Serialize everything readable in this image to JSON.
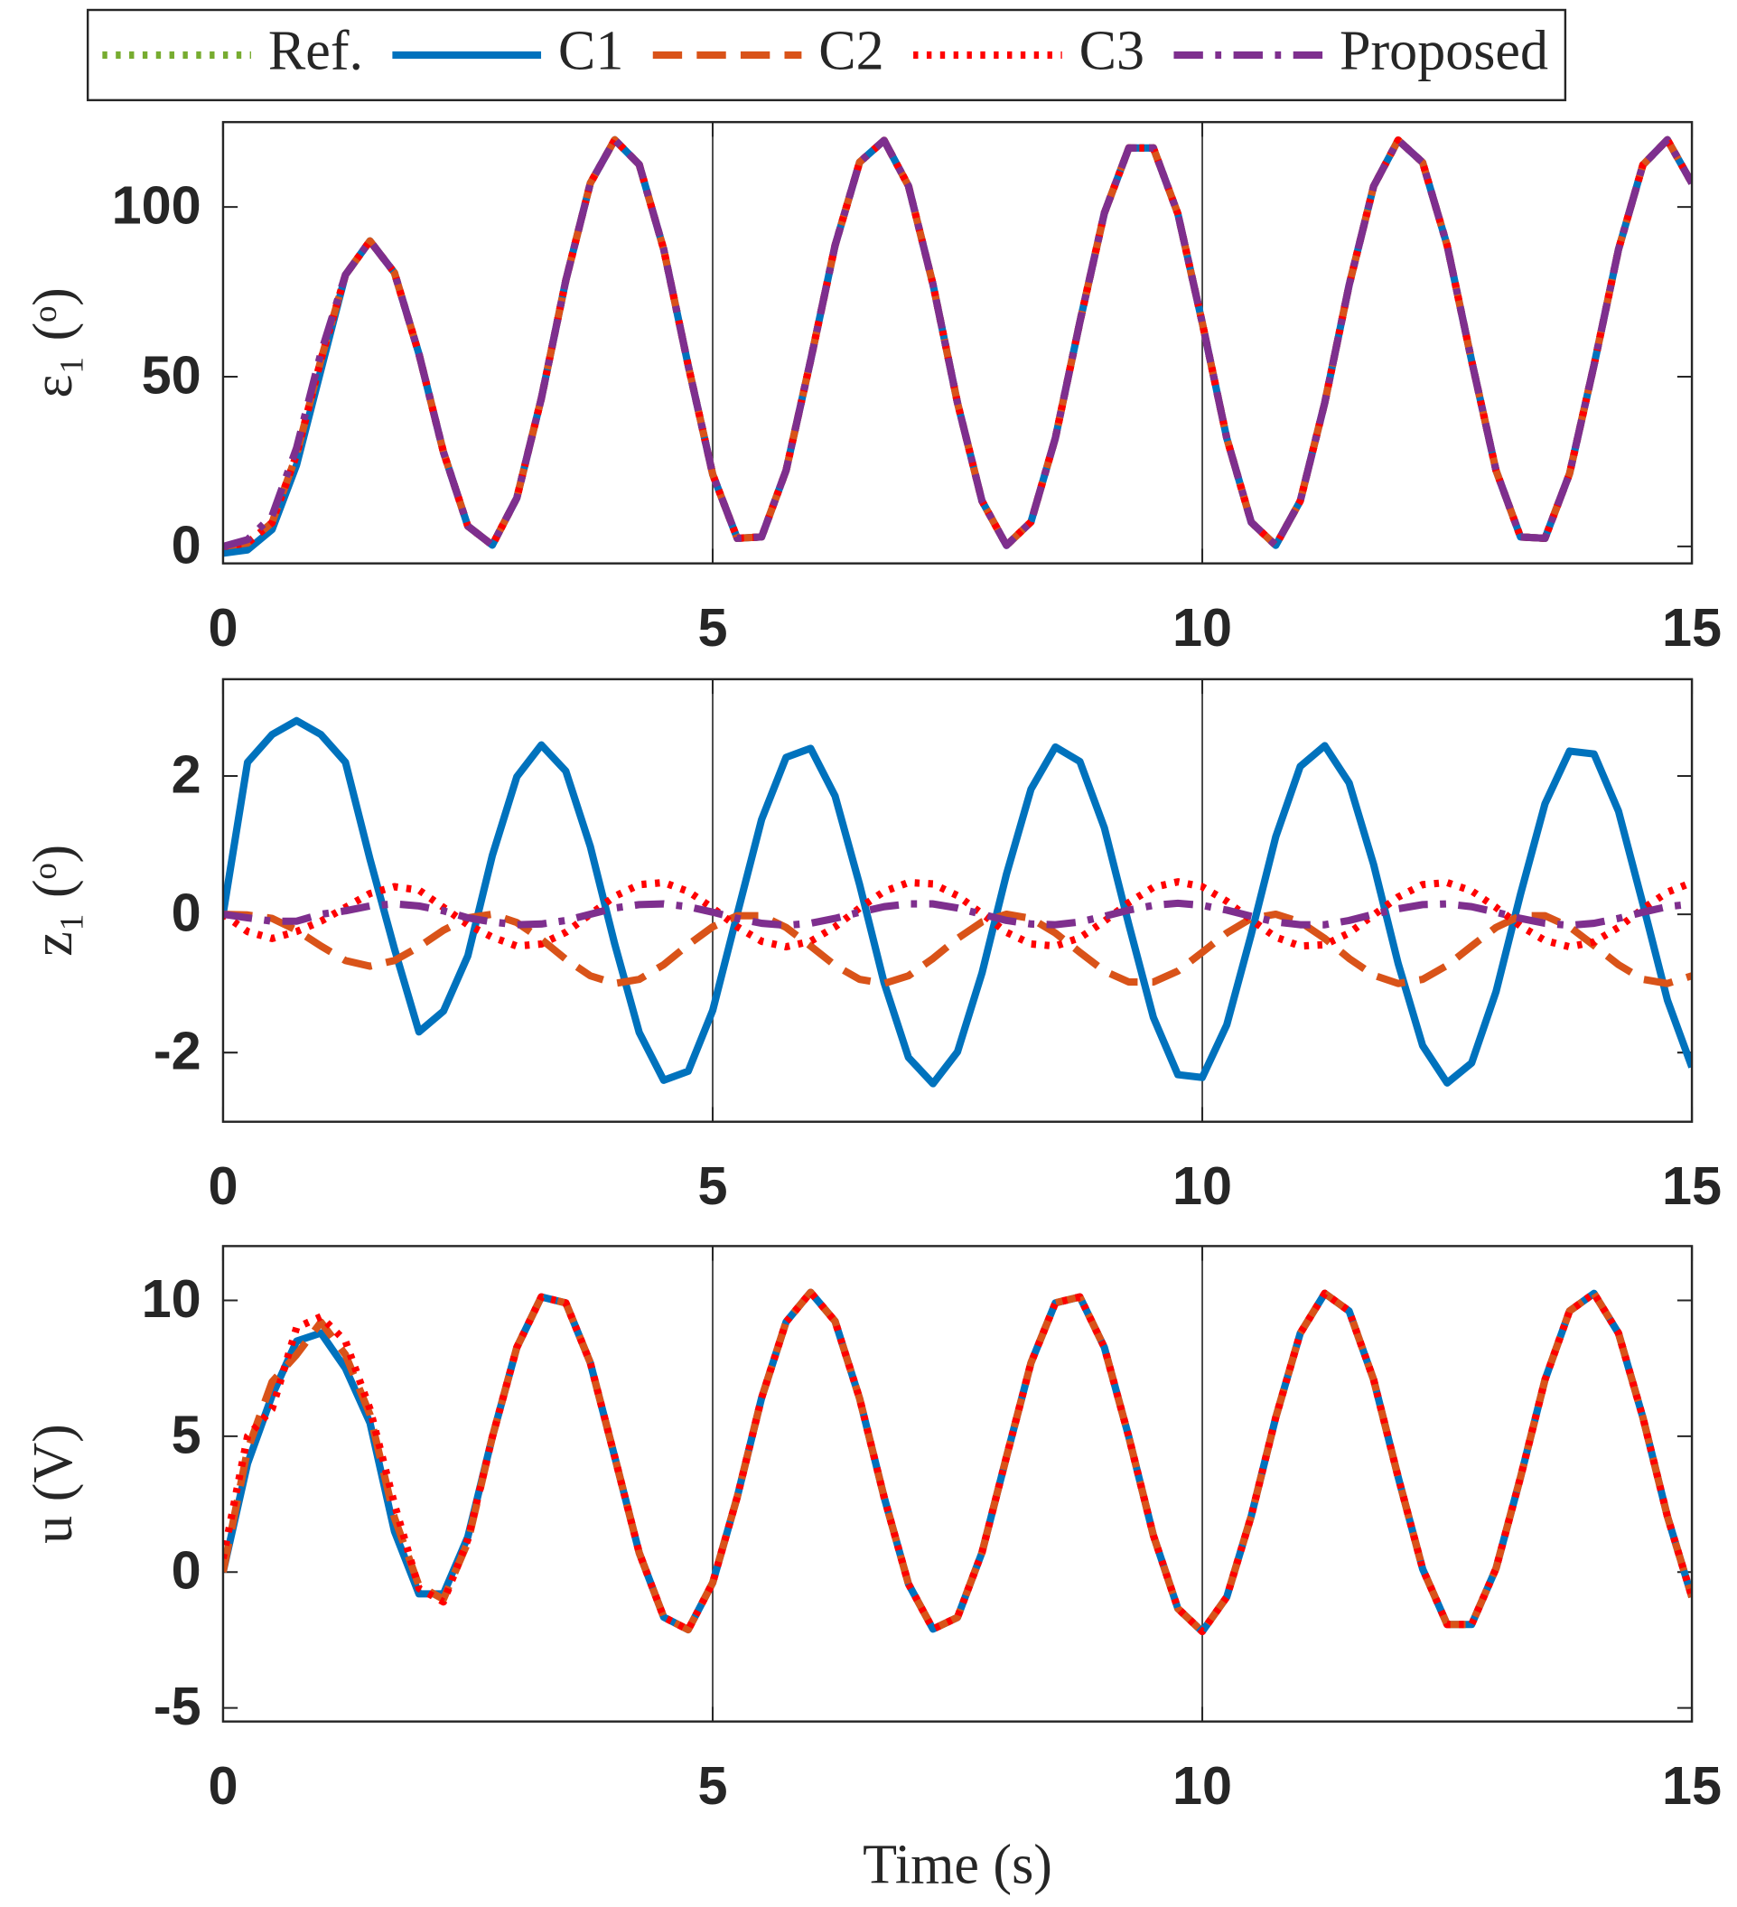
{
  "chart_data": [
    {
      "type": "line",
      "ylabel": "ε₁ (ᵒ)",
      "legend": "top",
      "xgrid": true,
      "xlim": [
        0,
        15
      ],
      "xticks": [
        0,
        5,
        10,
        15
      ],
      "ylim": [
        -5,
        125
      ],
      "yticks": [
        0,
        50,
        100
      ],
      "x": [
        0,
        0.25,
        0.5,
        0.75,
        1,
        1.25,
        1.5,
        1.75,
        2,
        2.25,
        2.5,
        2.75,
        3,
        3.25,
        3.5,
        3.75,
        4,
        4.25,
        4.5,
        4.75,
        5,
        5.25,
        5.5,
        5.75,
        6,
        6.25,
        6.5,
        6.75,
        7,
        7.25,
        7.5,
        7.75,
        8,
        8.25,
        8.5,
        8.75,
        9,
        9.25,
        9.5,
        9.75,
        10,
        10.25,
        10.5,
        10.75,
        11,
        11.25,
        11.5,
        11.75,
        12,
        12.25,
        12.5,
        12.75,
        13,
        13.25,
        13.5,
        13.75,
        14,
        14.25,
        14.5,
        14.75,
        15
      ],
      "series": [
        {
          "name": "Ref.",
          "color": "#77ac30",
          "dash": "dotted",
          "values": [
            0,
            1,
            7,
            27,
            55,
            80,
            90,
            80.6,
            56.7,
            27.8,
            6,
            0.4,
            14.3,
            43.6,
            78.4,
            107,
            119.8,
            112.5,
            87.5,
            53.3,
            21.2,
            2.4,
            2.8,
            22.4,
            54.8,
            88.7,
            113.2,
            119.6,
            106.2,
            77.2,
            42.3,
            13.4,
            0.3,
            7.2,
            31.9,
            66.1,
            98.2,
            117.4,
            117.4,
            98,
            65.9,
            31.9,
            7.1,
            0.3,
            13.4,
            42.3,
            77,
            106.1,
            119.7,
            113.1,
            88.7,
            54.7,
            22.4,
            2.8,
            2.4,
            21.4,
            53.4,
            87.5,
            112.4,
            119.8,
            107
          ]
        },
        {
          "name": "C1",
          "color": "#0072bd",
          "dash": "solid",
          "values": [
            -2,
            -1,
            5,
            24,
            52,
            80,
            90,
            80.6,
            56.7,
            27.8,
            6,
            0.4,
            14.3,
            43.6,
            78.4,
            107,
            119.8,
            112.5,
            87.5,
            53.3,
            21.2,
            2.4,
            2.8,
            22.4,
            54.8,
            88.7,
            113.2,
            119.6,
            106.2,
            77.2,
            42.3,
            13.4,
            0.3,
            7.2,
            31.9,
            66.1,
            98.2,
            117.4,
            117.4,
            98,
            65.9,
            31.9,
            7.1,
            0.3,
            13.4,
            42.3,
            77,
            106.1,
            119.7,
            113.1,
            88.7,
            54.7,
            22.4,
            2.8,
            2.4,
            21.4,
            53.4,
            87.5,
            112.4,
            119.8,
            107
          ]
        },
        {
          "name": "C2",
          "color": "#d95319",
          "dash": "dashed",
          "values": [
            0,
            1,
            7,
            27,
            55,
            80,
            90,
            80.6,
            56.7,
            27.8,
            6,
            0.4,
            14.3,
            43.6,
            78.4,
            107,
            119.8,
            112.5,
            87.5,
            53.3,
            21.2,
            2.4,
            2.8,
            22.4,
            54.8,
            88.7,
            113.2,
            119.6,
            106.2,
            77.2,
            42.3,
            13.4,
            0.3,
            7.2,
            31.9,
            66.1,
            98.2,
            117.4,
            117.4,
            98,
            65.9,
            31.9,
            7.1,
            0.3,
            13.4,
            42.3,
            77,
            106.1,
            119.7,
            113.1,
            88.7,
            54.7,
            22.4,
            2.8,
            2.4,
            21.4,
            53.4,
            87.5,
            112.4,
            119.8,
            107
          ]
        },
        {
          "name": "C3",
          "color": "#ff0000",
          "dash": "dotted",
          "values": [
            0,
            1,
            7,
            27,
            55,
            80,
            90,
            80.6,
            56.7,
            27.8,
            6,
            0.4,
            14.3,
            43.6,
            78.4,
            107,
            119.8,
            112.5,
            87.5,
            53.3,
            21.2,
            2.4,
            2.8,
            22.4,
            54.8,
            88.7,
            113.2,
            119.6,
            106.2,
            77.2,
            42.3,
            13.4,
            0.3,
            7.2,
            31.9,
            66.1,
            98.2,
            117.4,
            117.4,
            98,
            65.9,
            31.9,
            7.1,
            0.3,
            13.4,
            42.3,
            77,
            106.1,
            119.7,
            113.1,
            88.7,
            54.7,
            22.4,
            2.8,
            2.4,
            21.4,
            53.4,
            87.5,
            112.4,
            119.8,
            107
          ]
        },
        {
          "name": "Proposed",
          "color": "#7e2f8e",
          "dash": "dashdot",
          "values": [
            0,
            2,
            9,
            29,
            57,
            80,
            90,
            80.6,
            56.7,
            27.8,
            6,
            0.4,
            14.3,
            43.6,
            78.4,
            107,
            119.8,
            112.5,
            87.5,
            53.3,
            21.2,
            2.4,
            2.8,
            22.4,
            54.8,
            88.7,
            113.2,
            119.6,
            106.2,
            77.2,
            42.3,
            13.4,
            0.3,
            7.2,
            31.9,
            66.1,
            98.2,
            117.4,
            117.4,
            98,
            65.9,
            31.9,
            7.1,
            0.3,
            13.4,
            42.3,
            77,
            106.1,
            119.7,
            113.1,
            88.7,
            54.7,
            22.4,
            2.8,
            2.4,
            21.4,
            53.4,
            87.5,
            112.4,
            119.8,
            107
          ]
        }
      ]
    },
    {
      "type": "line",
      "ylabel": "z₁ (ᵒ)",
      "xgrid": true,
      "xlim": [
        0,
        15
      ],
      "xticks": [
        0,
        5,
        10,
        15
      ],
      "ylim": [
        -3,
        3.4
      ],
      "yticks": [
        -2,
        0,
        2
      ],
      "x": [
        0,
        0.25,
        0.5,
        0.75,
        1,
        1.25,
        1.5,
        1.75,
        2,
        2.25,
        2.5,
        2.75,
        3,
        3.25,
        3.5,
        3.75,
        4,
        4.25,
        4.5,
        4.75,
        5,
        5.25,
        5.5,
        5.75,
        6,
        6.25,
        6.5,
        6.75,
        7,
        7.25,
        7.5,
        7.75,
        8,
        8.25,
        8.5,
        8.75,
        9,
        9.25,
        9.5,
        9.75,
        10,
        10.25,
        10.5,
        10.75,
        11,
        11.25,
        11.5,
        11.75,
        12,
        12.25,
        12.5,
        12.75,
        13,
        13.25,
        13.5,
        13.75,
        14,
        14.25,
        14.5,
        14.75,
        15
      ],
      "series": [
        {
          "name": "C1",
          "color": "#0072bd",
          "dash": "solid",
          "values": [
            0,
            2.2,
            2.6,
            2.8,
            2.6,
            2.2,
            0.8,
            -0.5,
            -1.7,
            -1.4,
            -0.6,
            0.85,
            1.99,
            2.45,
            2.07,
            0.98,
            -0.43,
            -1.71,
            -2.4,
            -2.27,
            -1.39,
            0,
            1.37,
            2.27,
            2.4,
            1.71,
            0.43,
            -0.99,
            -2.07,
            -2.45,
            -1.99,
            -0.85,
            0.58,
            1.81,
            2.42,
            2.21,
            1.25,
            -0.15,
            -1.49,
            -2.32,
            -2.36,
            -1.6,
            -0.29,
            1.12,
            2.14,
            2.44,
            1.9,
            0.72,
            -0.71,
            -1.9,
            -2.44,
            -2.15,
            -1.12,
            0.29,
            1.6,
            2.36,
            2.32,
            1.49,
            0.15,
            -1.24,
            -2.21
          ]
        },
        {
          "name": "C2",
          "color": "#d95319",
          "dash": "dashed",
          "values": [
            0,
            -0.01,
            -0.06,
            -0.23,
            -0.46,
            -0.67,
            -0.75,
            -0.67,
            -0.47,
            -0.23,
            -0.05,
            0,
            -0.12,
            -0.36,
            -0.65,
            -0.89,
            -1,
            -0.94,
            -0.73,
            -0.44,
            -0.18,
            -0.02,
            -0.02,
            -0.19,
            -0.46,
            -0.74,
            -0.94,
            -1,
            -0.89,
            -0.64,
            -0.35,
            -0.11,
            0,
            -0.06,
            -0.27,
            -0.55,
            -0.82,
            -0.98,
            -0.98,
            -0.82,
            -0.55,
            -0.27,
            -0.06,
            0,
            -0.11,
            -0.35,
            -0.64,
            -0.88,
            -1,
            -0.94,
            -0.74,
            -0.46,
            -0.19,
            -0.02,
            -0.02,
            -0.18,
            -0.45,
            -0.73,
            -0.94,
            -1,
            -0.89
          ]
        },
        {
          "name": "C3",
          "color": "#ff0000",
          "dash": "dotted",
          "values": [
            0,
            -0.25,
            -0.35,
            -0.25,
            -0.1,
            0.1,
            0.3,
            0.4,
            0.35,
            0.1,
            -0.15,
            -0.33,
            -0.46,
            -0.43,
            -0.26,
            0,
            0.26,
            0.43,
            0.46,
            0.33,
            0.09,
            -0.18,
            -0.39,
            -0.47,
            -0.39,
            -0.18,
            0.09,
            0.33,
            0.46,
            0.44,
            0.27,
            0.01,
            -0.26,
            -0.43,
            -0.46,
            -0.34,
            -0.1,
            0.17,
            0.39,
            0.47,
            0.4,
            0.19,
            -0.08,
            -0.33,
            -0.46,
            -0.44,
            -0.27,
            -0.01,
            0.25,
            0.43,
            0.46,
            0.34,
            0.1,
            -0.17,
            -0.38,
            -0.47,
            -0.4,
            -0.19,
            0.08,
            0.32,
            0.46
          ]
        },
        {
          "name": "Proposed",
          "color": "#7e2f8e",
          "dash": "dashdot",
          "values": [
            0,
            -0.05,
            -0.1,
            -0.1,
            0,
            0.05,
            0.12,
            0.15,
            0.12,
            0.05,
            -0.05,
            -0.11,
            -0.15,
            -0.14,
            -0.09,
            0,
            0.09,
            0.14,
            0.15,
            0.11,
            0.03,
            -0.06,
            -0.13,
            -0.16,
            -0.13,
            -0.06,
            0.03,
            0.11,
            0.15,
            0.15,
            0.09,
            0,
            -0.09,
            -0.14,
            -0.15,
            -0.11,
            -0.03,
            0.06,
            0.13,
            0.16,
            0.13,
            0.06,
            -0.03,
            -0.11,
            -0.15,
            -0.15,
            -0.09,
            0,
            0.08,
            0.14,
            0.15,
            0.11,
            0.03,
            -0.06,
            -0.13,
            -0.16,
            -0.13,
            -0.06,
            0.03,
            0.11,
            0.15
          ]
        }
      ]
    },
    {
      "type": "line",
      "ylabel": "u (V)",
      "xlabel": "Time (s)",
      "xgrid": true,
      "xlim": [
        0,
        15
      ],
      "xticks": [
        0,
        5,
        10,
        15
      ],
      "ylim": [
        -5.5,
        12
      ],
      "yticks": [
        -5,
        0,
        5,
        10
      ],
      "x": [
        0,
        0.25,
        0.5,
        0.75,
        1,
        1.25,
        1.5,
        1.75,
        2,
        2.25,
        2.5,
        2.75,
        3,
        3.25,
        3.5,
        3.75,
        4,
        4.25,
        4.5,
        4.75,
        5,
        5.25,
        5.5,
        5.75,
        6,
        6.25,
        6.5,
        6.75,
        7,
        7.25,
        7.5,
        7.75,
        8,
        8.25,
        8.5,
        8.75,
        9,
        9.25,
        9.5,
        9.75,
        10,
        10.25,
        10.5,
        10.75,
        11,
        11.25,
        11.5,
        11.75,
        12,
        12.25,
        12.5,
        12.75,
        13,
        13.25,
        13.5,
        13.75,
        14,
        14.25,
        14.5,
        14.75,
        15
      ],
      "series": [
        {
          "name": "C1",
          "color": "#0072bd",
          "dash": "solid",
          "values": [
            0,
            4,
            6.5,
            8.5,
            8.8,
            7.5,
            5.5,
            1.5,
            -0.8,
            -0.8,
            1.3,
            4.97,
            8.27,
            10.13,
            9.91,
            7.7,
            4.24,
            0.71,
            -1.66,
            -2.12,
            -0.39,
            2.76,
            6.41,
            9.21,
            10.3,
            9.23,
            6.39,
            2.76,
            -0.44,
            -2.1,
            -1.67,
            0.72,
            4.24,
            7.7,
            9.91,
            10.13,
            8.27,
            4.97,
            1.35,
            -1.34,
            -2.19,
            -0.92,
            2.06,
            5.69,
            8.79,
            10.26,
            9.61,
            7.08,
            3.5,
            0.12,
            -1.93,
            -1.93,
            0.13,
            3.49,
            7.08,
            9.61,
            10.26,
            8.79,
            5.69,
            2.05,
            -0.92
          ]
        },
        {
          "name": "C2",
          "color": "#d95319",
          "dash": "dashed",
          "values": [
            0,
            4.5,
            7,
            8,
            9.2,
            8,
            5.8,
            2,
            -0.5,
            -1,
            1.1,
            4.97,
            8.27,
            10.13,
            9.91,
            7.7,
            4.24,
            0.71,
            -1.66,
            -2.12,
            -0.39,
            2.76,
            6.41,
            9.21,
            10.3,
            9.23,
            6.39,
            2.76,
            -0.44,
            -2.1,
            -1.67,
            0.72,
            4.24,
            7.7,
            9.91,
            10.13,
            8.27,
            4.97,
            1.35,
            -1.34,
            -2.19,
            -0.92,
            2.06,
            5.69,
            8.79,
            10.26,
            9.61,
            7.08,
            3.5,
            0.12,
            -1.93,
            -1.93,
            0.13,
            3.49,
            7.08,
            9.61,
            10.26,
            8.79,
            5.69,
            2.05,
            -0.92
          ]
        },
        {
          "name": "C3",
          "color": "#ff0000",
          "dash": "dotted",
          "values": [
            0.5,
            5,
            6,
            9,
            9.4,
            8.5,
            6,
            2.5,
            -0.6,
            -1.1,
            1.2,
            4.97,
            8.27,
            10.13,
            9.91,
            7.7,
            4.24,
            0.71,
            -1.66,
            -2.12,
            -0.39,
            2.76,
            6.41,
            9.21,
            10.3,
            9.23,
            6.39,
            2.76,
            -0.44,
            -2.1,
            -1.67,
            0.72,
            4.24,
            7.7,
            9.91,
            10.13,
            8.27,
            4.97,
            1.35,
            -1.34,
            -2.19,
            -0.92,
            2.06,
            5.69,
            8.79,
            10.26,
            9.61,
            7.08,
            3.5,
            0.12,
            -1.93,
            -1.93,
            0.13,
            3.49,
            7.08,
            9.61,
            10.26,
            8.79,
            5.69,
            2.05,
            -0.92
          ]
        }
      ]
    }
  ]
}
